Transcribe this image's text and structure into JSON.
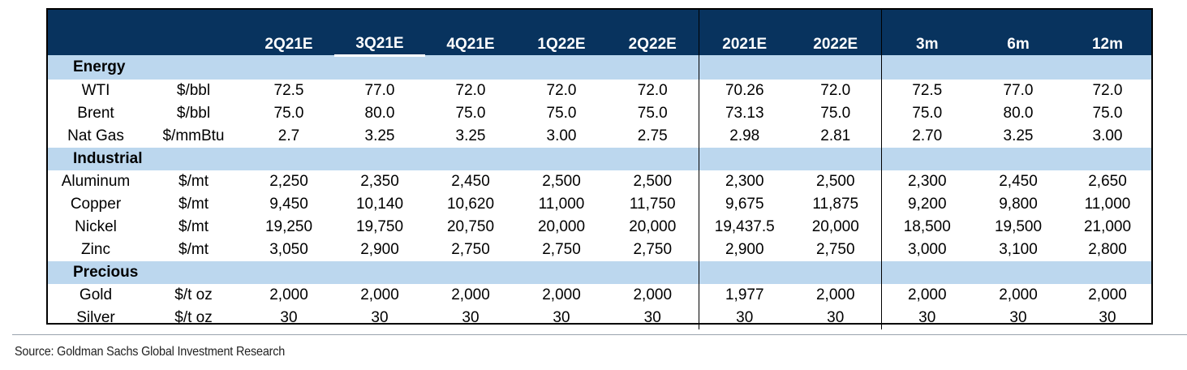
{
  "columns": [
    "2Q21E",
    "3Q21E",
    "4Q21E",
    "1Q22E",
    "2Q22E",
    "2021E",
    "2022E",
    "3m",
    "6m",
    "12m"
  ],
  "sections": [
    {
      "name": "Energy",
      "rows": [
        {
          "commodity": "WTI",
          "unit": "$/bbl",
          "values": [
            "72.5",
            "77.0",
            "72.0",
            "72.0",
            "72.0",
            "70.26",
            "72.0",
            "72.5",
            "77.0",
            "72.0"
          ]
        },
        {
          "commodity": "Brent",
          "unit": "$/bbl",
          "values": [
            "75.0",
            "80.0",
            "75.0",
            "75.0",
            "75.0",
            "73.13",
            "75.0",
            "75.0",
            "80.0",
            "75.0"
          ]
        },
        {
          "commodity": "Nat Gas",
          "unit": "$/mmBtu",
          "values": [
            "2.7",
            "3.25",
            "3.25",
            "3.00",
            "2.75",
            "2.98",
            "2.81",
            "2.70",
            "3.25",
            "3.00"
          ]
        }
      ]
    },
    {
      "name": "Industrial",
      "rows": [
        {
          "commodity": "Aluminum",
          "unit": "$/mt",
          "values": [
            "2,250",
            "2,350",
            "2,450",
            "2,500",
            "2,500",
            "2,300",
            "2,500",
            "2,300",
            "2,450",
            "2,650"
          ]
        },
        {
          "commodity": "Copper",
          "unit": "$/mt",
          "values": [
            "9,450",
            "10,140",
            "10,620",
            "11,000",
            "11,750",
            "9,675",
            "11,875",
            "9,200",
            "9,800",
            "11,000"
          ]
        },
        {
          "commodity": "Nickel",
          "unit": "$/mt",
          "values": [
            "19,250",
            "19,750",
            "20,750",
            "20,000",
            "20,000",
            "19,437.5",
            "20,000",
            "18,500",
            "19,500",
            "21,000"
          ]
        },
        {
          "commodity": "Zinc",
          "unit": "$/mt",
          "values": [
            "3,050",
            "2,900",
            "2,750",
            "2,750",
            "2,750",
            "2,900",
            "2,750",
            "3,000",
            "3,100",
            "2,800"
          ]
        }
      ]
    },
    {
      "name": "Precious",
      "rows": [
        {
          "commodity": "Gold",
          "unit": "$/t oz",
          "values": [
            "2,000",
            "2,000",
            "2,000",
            "2,000",
            "2,000",
            "1,977",
            "2,000",
            "2,000",
            "2,000",
            "2,000"
          ]
        },
        {
          "commodity": "Silver",
          "unit": "$/t oz",
          "values": [
            "30",
            "30",
            "30",
            "30",
            "30",
            "30",
            "30",
            "30",
            "30",
            "30"
          ]
        }
      ]
    }
  ],
  "source": "Source: Goldman Sachs Global Investment Research",
  "colors": {
    "header_bg": "#08335e",
    "header_text": "#ffffff",
    "section_bg": "#bcd7ee"
  }
}
